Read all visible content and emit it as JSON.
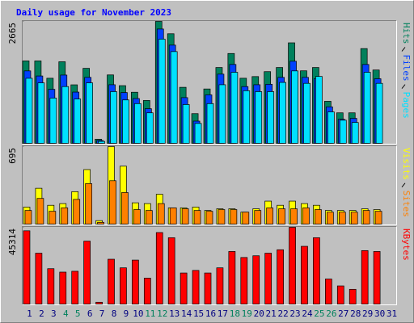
{
  "title": "Daily usage for November 2023",
  "chart_data": [
    {
      "type": "bar",
      "ylim": [
        0,
        2665
      ],
      "yticks": [
        2665
      ],
      "series": [
        {
          "name": "Hits",
          "color": "#00805c",
          "values": [
            1807,
            1807,
            1431,
            1789,
            1288,
            1646,
            107,
            1503,
            1270,
            1127,
            948,
            2665,
            2397,
            1234,
            662,
            1198,
            1664,
            1968,
            1431,
            1467,
            1574,
            1664,
            2200,
            1592,
            1664,
            930,
            680,
            680,
            2075,
            1610,
            null
          ]
        },
        {
          "name": "Files",
          "color": "#0040ff",
          "values": [
            1590,
            1480,
            1190,
            1500,
            1130,
            1450,
            80,
            1290,
            1120,
            990,
            770,
            2500,
            2150,
            1010,
            500,
            1070,
            1520,
            1730,
            1250,
            1290,
            1300,
            1450,
            1800,
            1450,
            1420,
            810,
            540,
            560,
            1730,
            1420,
            null
          ]
        },
        {
          "name": "Pages",
          "color": "#00e0ff",
          "values": [
            1430,
            1330,
            1000,
            1250,
            980,
            1330,
            60,
            1140,
            960,
            880,
            680,
            2280,
            2010,
            860,
            450,
            880,
            1290,
            1560,
            1160,
            1140,
            1140,
            1340,
            1590,
            1320,
            1470,
            700,
            520,
            470,
            1560,
            1320,
            null
          ]
        }
      ]
    },
    {
      "type": "bar",
      "ylim": [
        0,
        695
      ],
      "yticks": [
        695
      ],
      "series": [
        {
          "name": "Visits",
          "color": "#ffff00",
          "values": [
            158,
            325,
            174,
            189,
            295,
            491,
            38,
            695,
            521,
            196,
            189,
            272,
            151,
            151,
            158,
            128,
            143,
            143,
            113,
            143,
            211,
            174,
            211,
            189,
            174,
            128,
            128,
            128,
            143,
            136,
            null
          ]
        },
        {
          "name": "Sites",
          "color": "#ff8000",
          "values": [
            128,
            235,
            121,
            151,
            226,
            366,
            23,
            392,
            287,
            136,
            128,
            189,
            151,
            143,
            128,
            121,
            136,
            136,
            113,
            128,
            151,
            143,
            143,
            151,
            136,
            113,
            113,
            113,
            128,
            121,
            null
          ]
        }
      ]
    },
    {
      "type": "bar",
      "ylim": [
        0,
        45314
      ],
      "yticks": [
        45314
      ],
      "categories": [
        "1",
        "2",
        "3",
        "4",
        "5",
        "6",
        "7",
        "8",
        "9",
        "10",
        "11",
        "12",
        "13",
        "14",
        "15",
        "16",
        "17",
        "18",
        "19",
        "20",
        "21",
        "22",
        "23",
        "24",
        "25",
        "26",
        "27",
        "28",
        "29",
        "30",
        "31"
      ],
      "weekends": [
        "4",
        "5",
        "11",
        "12",
        "18",
        "19",
        "25",
        "26"
      ],
      "label_color": "#000080",
      "weekend_color": "#00805c",
      "series": [
        {
          "name": "KBytes",
          "color": "#ff0000",
          "values": [
            43270,
            30190,
            21130,
            19120,
            19620,
            37230,
            1510,
            26660,
            21630,
            26160,
            15600,
            42260,
            39240,
            18610,
            20120,
            18610,
            21630,
            31190,
            27670,
            28680,
            30190,
            32200,
            45314,
            34210,
            39240,
            15090,
            11070,
            9060,
            31700,
            31190,
            null
          ]
        }
      ]
    }
  ]
}
